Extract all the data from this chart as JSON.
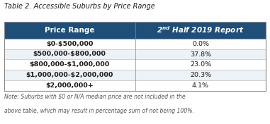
{
  "title": "Table 2. Accessible Suburbs by Price Range",
  "col1_header": "Price Range",
  "col2_header": "2ⁿᵈ Half 2019 Report",
  "rows": [
    [
      "$0-$500,000",
      "0.0%"
    ],
    [
      "$500,000-$800,000",
      "37.8%"
    ],
    [
      "$800,000-$1,000,000",
      "23.0%"
    ],
    [
      "$1,000,000-$2,000,000",
      "20.3%"
    ],
    [
      "$2,000,000+",
      "4.1%"
    ]
  ],
  "note_line1": "Note: Suburbs with $0 or N/A median price are not included in the",
  "note_line2": "above table, which may result in percentage sum of not being 100%.",
  "header_bg": "#1F4E79",
  "header_text": "#FFFFFF",
  "row_bg_white": "#FFFFFF",
  "row_bg_gray": "#EDF2F7",
  "cell_text": "#1a1a1a",
  "title_color": "#1a1a1a",
  "note_color": "#555555",
  "border_color": "#888888",
  "col_split": 0.5
}
